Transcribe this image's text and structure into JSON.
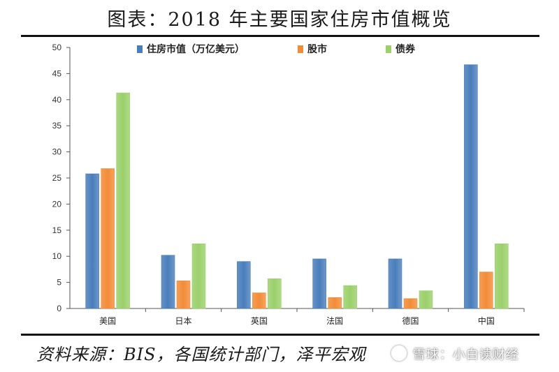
{
  "header": {
    "title": "图表：2018 年主要国家住房市值概览"
  },
  "footer": {
    "source": "资料来源：BIS，各国统计部门，泽平宏观",
    "watermark": "雪球：小白读财经"
  },
  "colors": {
    "series": [
      "#4a7ebb",
      "#f28c38",
      "#9bd06b"
    ]
  },
  "chart_data": {
    "type": "bar",
    "title": "",
    "xlabel": "",
    "ylabel": "",
    "categories": [
      "美国",
      "日本",
      "英国",
      "法国",
      "德国",
      "中国"
    ],
    "series": [
      {
        "name": "住房市值（万亿美元）",
        "values": [
          25.8,
          10.2,
          9.0,
          9.5,
          9.5,
          46.7
        ]
      },
      {
        "name": "股市",
        "values": [
          26.8,
          5.3,
          3.0,
          2.1,
          1.9,
          7.0
        ]
      },
      {
        "name": "债券",
        "values": [
          41.3,
          12.4,
          5.7,
          4.4,
          3.4,
          12.4
        ]
      }
    ],
    "ylim": [
      0,
      50
    ],
    "yticks": [
      0,
      5,
      10,
      15,
      20,
      25,
      30,
      35,
      40,
      45,
      50
    ],
    "grid": false,
    "legend": "top"
  }
}
